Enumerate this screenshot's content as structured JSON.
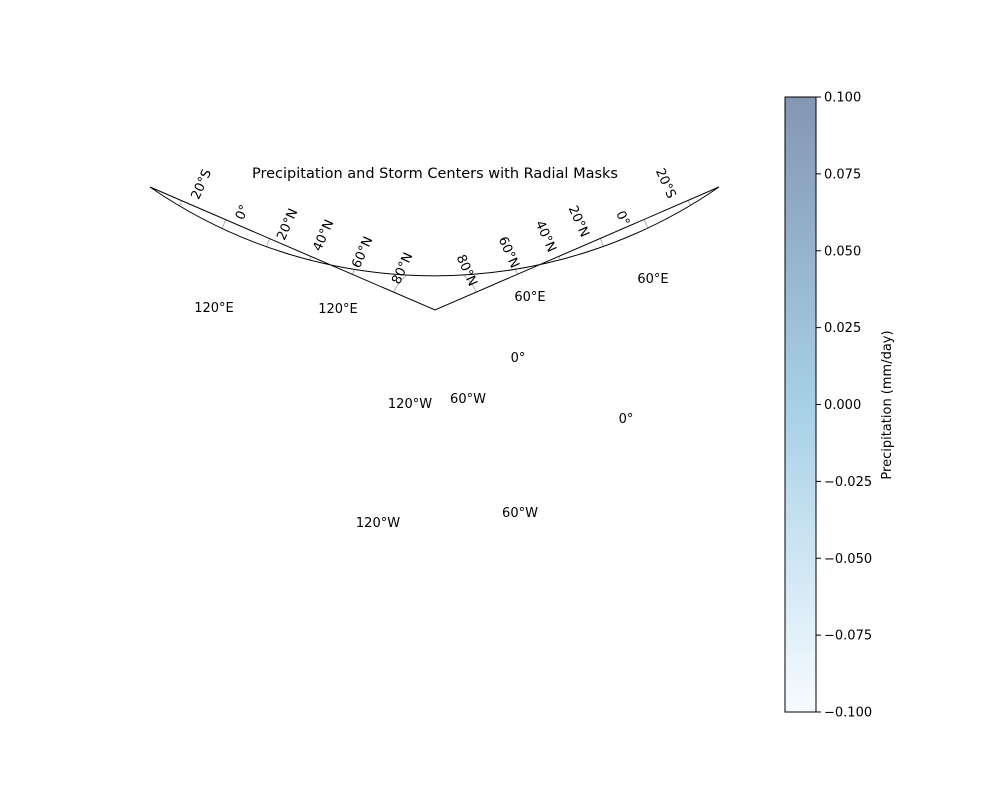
{
  "title": "Precipitation and Storm Centers with Radial Masks",
  "labels": {
    "top_left": [
      "20°S",
      "0°",
      "20°N",
      "40°N",
      "60°N",
      "80°N"
    ],
    "top_right": [
      "80°N",
      "60°N",
      "40°N",
      "20°N",
      "0°",
      "20°S"
    ],
    "lon": [
      "120°E",
      "120°E",
      "60°E",
      "60°E",
      "0°",
      "0°",
      "120°W",
      "60°W",
      "120°W",
      "60°W"
    ]
  },
  "colorbar": {
    "label": "Precipitation (mm/day)",
    "ticks": [
      "0.100",
      "0.075",
      "0.050",
      "0.025",
      "0.000",
      "−0.025",
      "−0.050",
      "−0.075",
      "−0.100"
    ],
    "top_color": "#8496b4",
    "mid_color": "#a6d0e6",
    "bottom_color": "#f7fbff"
  },
  "storm_center": {
    "fill_color": "#ff0000",
    "mask_color": "#2ca02c"
  },
  "precip_patch_color": "#b7d4ea"
}
